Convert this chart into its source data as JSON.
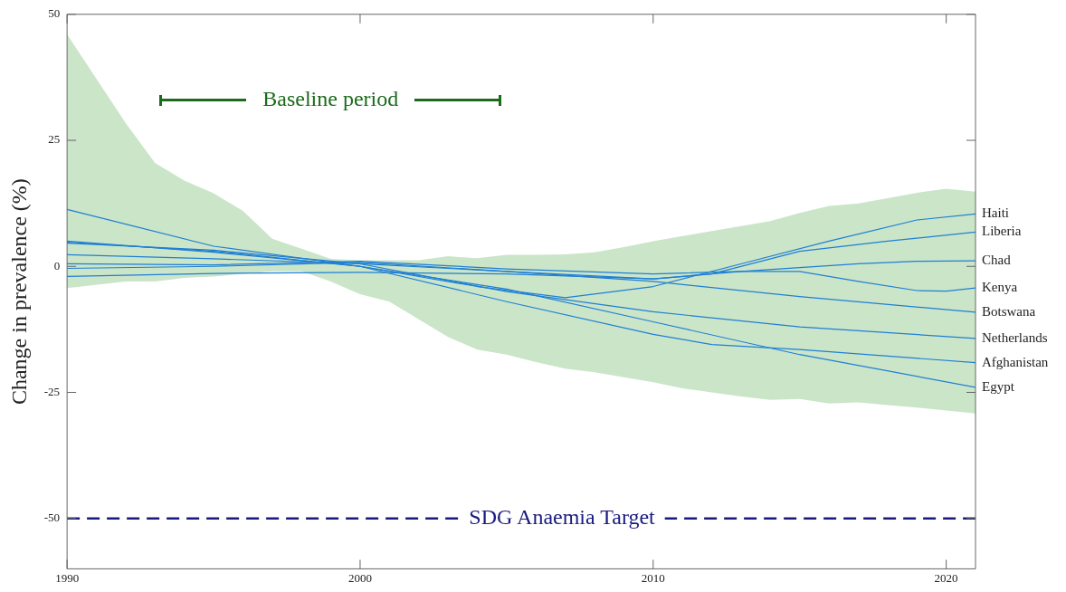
{
  "chart_data": {
    "type": "line",
    "ylabel": "Change in prevalence (%)",
    "xlim": [
      1990,
      2021
    ],
    "xticks": [
      1990,
      2000,
      2010,
      2020
    ],
    "ylim": [
      -60,
      50
    ],
    "yticks": [
      -50,
      -25,
      0,
      25,
      50
    ],
    "grid": false,
    "legend": false,
    "marker": "none",
    "line_style": "solid",
    "series": [
      {
        "type": "area",
        "color": "#cbe5c9",
        "values": [
          null,
          null,
          null,
          null,
          null,
          null,
          null,
          null,
          null,
          null,
          null,
          null,
          null,
          null,
          null,
          null,
          null,
          null,
          null,
          null,
          null,
          null,
          null,
          null,
          null,
          null,
          null,
          null,
          null,
          null,
          null
        ],
        "x": [
          1990,
          1992,
          1993,
          1994,
          1995,
          1996,
          1997,
          1998,
          1999,
          2000,
          2001,
          2002,
          2003,
          2004,
          2005,
          2006,
          2007,
          2008,
          2009,
          2010,
          2011,
          2012,
          2013,
          2014,
          2015,
          2016,
          2017,
          2018,
          2019,
          2020,
          2021
        ],
        "upper": [
          46,
          28.4,
          20.5,
          17,
          14.5,
          11,
          5.5,
          3.5,
          1.5,
          1.2,
          1.2,
          1.2,
          2,
          1.6,
          2.3,
          2.3,
          2.4,
          2.8,
          3.8,
          5,
          6,
          7,
          8,
          9,
          10.6,
          12,
          12.5,
          13.5,
          14.6,
          15.4,
          14.8
        ],
        "lower": [
          -4.3,
          -3,
          -3,
          -2.3,
          -2,
          -1.5,
          -1,
          -1,
          -3,
          -5.5,
          -7,
          -10.5,
          -14,
          -16.5,
          -17.5,
          -19,
          -20.3,
          -21,
          -22,
          -23,
          -24.2,
          -25,
          -25.8,
          -26.5,
          -26.3,
          -27.2,
          -27,
          -27.5,
          -28,
          -28.6,
          -29.2
        ]
      },
      {
        "name": "Haiti",
        "color": "#1f7fd4",
        "x": [
          1990,
          1995,
          2000,
          2004,
          2007,
          2010,
          2013,
          2016,
          2019,
          2021
        ],
        "values": [
          4.8,
          3,
          0,
          -4,
          -6.2,
          -4,
          0.5,
          5,
          9.2,
          10.4
        ]
      },
      {
        "name": "Liberia",
        "color": "#1f7fd4",
        "x": [
          1990,
          1995,
          2000,
          2005,
          2010,
          2012,
          2015,
          2018,
          2021
        ],
        "values": [
          4.6,
          3.2,
          0.5,
          -1,
          -2.5,
          -1.5,
          3,
          5,
          6.8
        ]
      },
      {
        "name": "Chad",
        "color": "#1f7fd4",
        "x": [
          1990,
          1995,
          2000,
          2005,
          2010,
          2013,
          2017,
          2019,
          2021
        ],
        "values": [
          -2,
          -1.4,
          -1.2,
          -1.5,
          -2.5,
          -1,
          0.5,
          1,
          1.1
        ]
      },
      {
        "name": "Kenya",
        "color": "#1f7fd4",
        "x": [
          1990,
          1995,
          2000,
          2005,
          2010,
          2013,
          2015,
          2017,
          2019,
          2020,
          2021
        ],
        "values": [
          0.5,
          0.3,
          1,
          -0.5,
          -1.5,
          -1,
          -1,
          -3,
          -4.8,
          -4.9,
          -4.3
        ]
      },
      {
        "name": "Botswana",
        "color": "#1f7fd4",
        "x": [
          1990,
          1995,
          2000,
          2005,
          2010,
          2015,
          2021
        ],
        "values": [
          -0.4,
          0,
          0.8,
          -1,
          -3,
          -6,
          -9.1
        ]
      },
      {
        "name": "Netherlands",
        "color": "#1f7fd4",
        "x": [
          1990,
          1995,
          2000,
          2005,
          2010,
          2015,
          2021
        ],
        "values": [
          2.3,
          1.5,
          0.5,
          -5,
          -9,
          -12,
          -14.3
        ]
      },
      {
        "name": "Afghanistan",
        "color": "#1f7fd4",
        "x": [
          1990,
          1995,
          2000,
          2005,
          2010,
          2012,
          2015,
          2021
        ],
        "values": [
          5,
          2.8,
          0,
          -7,
          -13.5,
          -15.5,
          -16.5,
          -19.1
        ]
      },
      {
        "name": "Egypt",
        "color": "#1f7fd4",
        "x": [
          1990,
          1995,
          2000,
          2005,
          2010,
          2015,
          2021
        ],
        "values": [
          11.3,
          4,
          0,
          -4.5,
          -11,
          -17.5,
          -24
        ]
      }
    ],
    "ref_lines": [
      {
        "axis": "y",
        "value": -50,
        "label": "SDG Anaemia Target",
        "color": "#1a1a80",
        "line_style": "dashed"
      }
    ],
    "annotations": [
      "Baseline period"
    ]
  }
}
